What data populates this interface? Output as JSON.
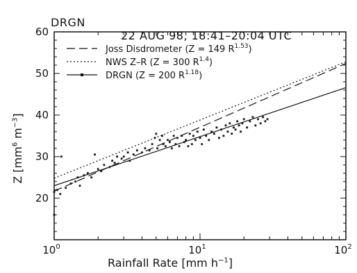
{
  "chart_data": {
    "type": "scatter",
    "title_station": "DRGN",
    "title_date": "22 AUG 98, 18:41–20:04 UTC",
    "xlabel": "Rainfall Rate  [mm h",
    "xlabel_sup": "−1",
    "xlabel_end": "]",
    "ylabel": "Z  [mm",
    "ylabel_sup1": "6",
    "ylabel_mid": " m",
    "ylabel_sup2": "−3",
    "ylabel_end": "]",
    "xscale": "log",
    "xlim": [
      1,
      100
    ],
    "ylim": [
      10,
      60
    ],
    "x_ticks": [
      {
        "base": "10",
        "exp": "0",
        "value": 1
      },
      {
        "base": "10",
        "exp": "1",
        "value": 10
      },
      {
        "base": "10",
        "exp": "2",
        "value": 100
      }
    ],
    "y_ticks": [
      {
        "label": "20",
        "value": 20
      },
      {
        "label": "30",
        "value": 30
      },
      {
        "label": "40",
        "value": 40
      },
      {
        "label": "50",
        "value": 50
      },
      {
        "label": "60",
        "value": 60
      }
    ],
    "legend_position": "top-left",
    "series": [
      {
        "name": "Joss Disdrometer (Z = 149 R",
        "name_sup": "1.53",
        "name_end": ")",
        "style": "dashed",
        "line": [
          [
            1,
            21.7
          ],
          [
            100,
            52.4
          ]
        ]
      },
      {
        "name": "NWS Z–R (Z = 300 R",
        "name_sup": "1.4",
        "name_end": ")",
        "style": "dotted",
        "line": [
          [
            1,
            24.8
          ],
          [
            100,
            52.8
          ]
        ]
      },
      {
        "name": "DRGN (Z = 200 R",
        "name_sup": "1.18",
        "name_end": ")",
        "style": "solid",
        "line": [
          [
            1,
            23.0
          ],
          [
            100,
            46.6
          ]
        ],
        "points": [
          [
            1.0,
            16.0
          ],
          [
            1.0,
            21.5
          ],
          [
            1.05,
            22.0
          ],
          [
            1.1,
            21.0
          ],
          [
            1.12,
            30.0
          ],
          [
            1.2,
            22.5
          ],
          [
            1.3,
            23.5
          ],
          [
            1.4,
            24.0
          ],
          [
            1.45,
            25.0
          ],
          [
            1.5,
            23.0
          ],
          [
            1.6,
            25.5
          ],
          [
            1.7,
            26.0
          ],
          [
            1.8,
            25.0
          ],
          [
            1.9,
            30.5
          ],
          [
            2.0,
            27.0
          ],
          [
            2.1,
            26.5
          ],
          [
            2.2,
            28.0
          ],
          [
            2.4,
            27.5
          ],
          [
            2.5,
            29.0
          ],
          [
            2.6,
            28.5
          ],
          [
            2.7,
            30.0
          ],
          [
            2.9,
            29.5
          ],
          [
            3.0,
            30.0
          ],
          [
            3.2,
            31.0
          ],
          [
            3.3,
            29.0
          ],
          [
            3.5,
            30.5
          ],
          [
            3.7,
            31.5
          ],
          [
            4.0,
            31.0
          ],
          [
            4.2,
            32.0
          ],
          [
            4.5,
            31.5
          ],
          [
            4.7,
            33.0
          ],
          [
            4.9,
            34.5
          ],
          [
            5.0,
            35.5
          ],
          [
            5.1,
            32.0
          ],
          [
            5.3,
            34.0
          ],
          [
            5.5,
            35.0
          ],
          [
            5.6,
            33.0
          ],
          [
            5.8,
            32.5
          ],
          [
            6.0,
            34.0
          ],
          [
            6.2,
            33.5
          ],
          [
            6.4,
            32.0
          ],
          [
            6.6,
            35.0
          ],
          [
            6.8,
            33.0
          ],
          [
            7.0,
            34.5
          ],
          [
            7.2,
            32.5
          ],
          [
            7.5,
            35.0
          ],
          [
            7.8,
            33.5
          ],
          [
            8.0,
            34.0
          ],
          [
            8.3,
            32.5
          ],
          [
            8.5,
            35.5
          ],
          [
            8.8,
            33.0
          ],
          [
            9.0,
            35.0
          ],
          [
            9.3,
            34.0
          ],
          [
            9.6,
            36.0
          ],
          [
            10.0,
            34.5
          ],
          [
            10.3,
            33.0
          ],
          [
            10.6,
            36.5
          ],
          [
            11.0,
            35.0
          ],
          [
            11.5,
            34.0
          ],
          [
            12.0,
            36.0
          ],
          [
            12.5,
            35.5
          ],
          [
            13.0,
            37.0
          ],
          [
            13.5,
            34.5
          ],
          [
            14.0,
            36.5
          ],
          [
            14.5,
            35.0
          ],
          [
            15.0,
            37.5
          ],
          [
            15.5,
            36.0
          ],
          [
            16.0,
            38.0
          ],
          [
            16.5,
            35.5
          ],
          [
            17.0,
            37.0
          ],
          [
            17.5,
            36.5
          ],
          [
            18.0,
            38.5
          ],
          [
            18.5,
            37.5
          ],
          [
            19.0,
            36.0
          ],
          [
            19.5,
            38.0
          ],
          [
            20.0,
            39.0
          ],
          [
            21.0,
            37.0
          ],
          [
            22.0,
            38.5
          ],
          [
            23.0,
            39.5
          ],
          [
            24.0,
            37.5
          ],
          [
            25.0,
            39.0
          ],
          [
            26.0,
            38.0
          ],
          [
            27.0,
            39.5
          ],
          [
            28.0,
            38.5
          ],
          [
            29.0,
            39.0
          ]
        ]
      }
    ]
  }
}
